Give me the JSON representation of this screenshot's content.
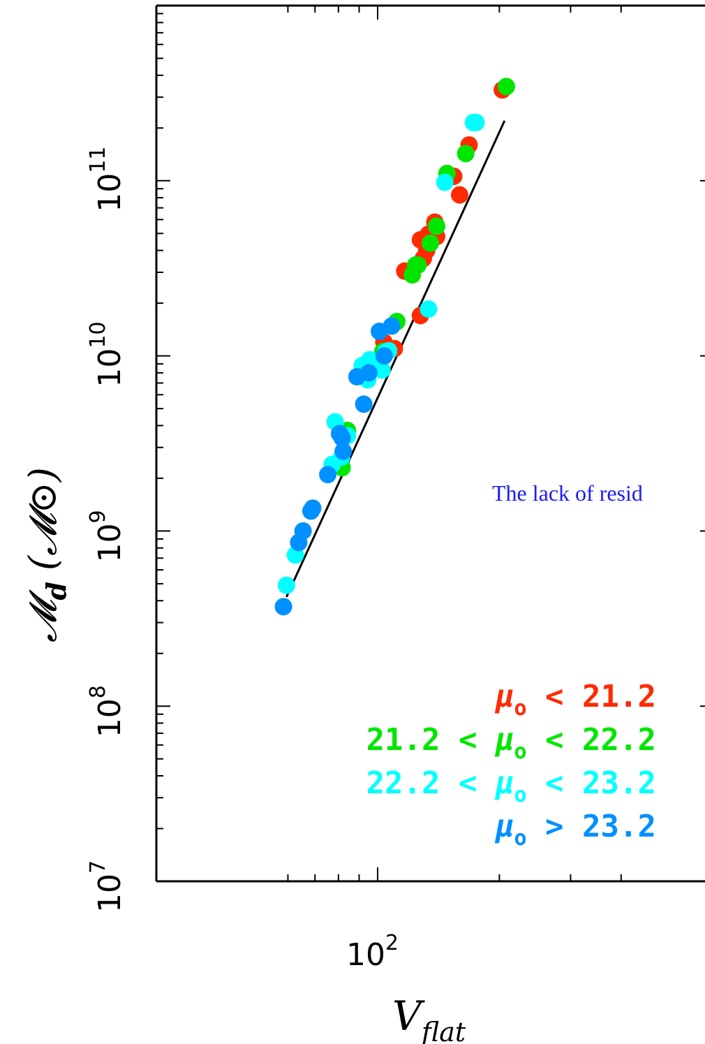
{
  "chart_data": {
    "type": "scatter",
    "xlabel": {
      "main": "V",
      "sub": "flat"
    },
    "ylabel": {
      "main": "𝓜",
      "sub": "d",
      "unit": "(𝓜⊙)"
    },
    "xscale": "log",
    "yscale": "log",
    "xlim": [
      55,
      450
    ],
    "ylim": [
      10000000.0,
      1000000000000.0
    ],
    "x_tick_labels": [
      {
        "base": "10",
        "exp": "2",
        "value": 100
      }
    ],
    "y_tick_labels": [
      {
        "base": "10",
        "exp": "7",
        "value": 10000000.0
      },
      {
        "base": "10",
        "exp": "8",
        "value": 100000000.0
      },
      {
        "base": "10",
        "exp": "9",
        "value": 1000000000.0
      },
      {
        "base": "10",
        "exp": "10",
        "value": 10000000000.0
      },
      {
        "base": "10",
        "exp": "11",
        "value": 100000000000.0
      }
    ],
    "fit_line": {
      "x": [
        59.5,
        206
      ],
      "y": [
        420000000.0,
        220000000000.0
      ]
    },
    "annotation": "The lack of resid",
    "legend_placement": "bottom-right",
    "series": [
      {
        "color": "#ff2a00",
        "legend": {
          "parts": [
            "μ",
            "o",
            " < 21.2"
          ]
        },
        "points": [
          {
            "x": 203.4,
            "y": 330000000000.0
          },
          {
            "x": 168.3,
            "y": 160000000000.0
          },
          {
            "x": 154.2,
            "y": 106000000000.0
          },
          {
            "x": 159.5,
            "y": 83000000000.0
          },
          {
            "x": 138.5,
            "y": 58000000000.0
          },
          {
            "x": 133.6,
            "y": 49500000000.0
          },
          {
            "x": 127.6,
            "y": 46000000000.0
          },
          {
            "x": 139.9,
            "y": 48000000000.0
          },
          {
            "x": 132.2,
            "y": 40000000000.0
          },
          {
            "x": 129.7,
            "y": 36000000000.0
          },
          {
            "x": 116.7,
            "y": 30500000000.0
          },
          {
            "x": 127.6,
            "y": 17000000000.0
          },
          {
            "x": 110.0,
            "y": 11000000000.0
          },
          {
            "x": 103.6,
            "y": 12000000000.0
          }
        ]
      },
      {
        "color": "#00e600",
        "legend": {
          "parts": [
            "21.2 < ",
            "μ",
            "o",
            " < 22.2"
          ]
        },
        "points": [
          {
            "x": 208.1,
            "y": 345000000000.0
          },
          {
            "x": 165.1,
            "y": 143000000000.0
          },
          {
            "x": 148.4,
            "y": 110000000000.0
          },
          {
            "x": 139.9,
            "y": 55000000000.0
          },
          {
            "x": 135.0,
            "y": 44000000000.0
          },
          {
            "x": 125.8,
            "y": 33000000000.0
          },
          {
            "x": 124.2,
            "y": 33000000000.0
          },
          {
            "x": 121.8,
            "y": 29000000000.0
          },
          {
            "x": 111.6,
            "y": 15700000000.0
          },
          {
            "x": 103.0,
            "y": 10600000000.0
          },
          {
            "x": 84.2,
            "y": 3750000000.0
          },
          {
            "x": 81.7,
            "y": 2300000000.0
          }
        ]
      },
      {
        "color": "#00ffff",
        "legend": {
          "parts": [
            "22.2 < ",
            "μ",
            "o",
            " < 23.2"
          ]
        },
        "points": [
          {
            "x": 175.1,
            "y": 215000000000.0
          },
          {
            "x": 172.5,
            "y": 215000000000.0
          },
          {
            "x": 146.6,
            "y": 98000000000.0
          },
          {
            "x": 133.6,
            "y": 18500000000.0
          },
          {
            "x": 106.5,
            "y": 10700000000.0
          },
          {
            "x": 104.7,
            "y": 10500000000.0
          },
          {
            "x": 102.5,
            "y": 8300000000.0
          },
          {
            "x": 95.6,
            "y": 9500000000.0
          },
          {
            "x": 94.5,
            "y": 7300000000.0
          },
          {
            "x": 91.6,
            "y": 8800000000.0
          },
          {
            "x": 78.5,
            "y": 4200000000.0
          },
          {
            "x": 84.2,
            "y": 3500000000.0
          },
          {
            "x": 81.5,
            "y": 2650000000.0
          },
          {
            "x": 77.2,
            "y": 2400000000.0
          },
          {
            "x": 62.6,
            "y": 730000000.0
          },
          {
            "x": 59.5,
            "y": 490000000.0
          }
        ]
      },
      {
        "color": "#0090ff",
        "legend": {
          "parts": [
            "μ",
            "o",
            " > 23.2"
          ]
        },
        "points": [
          {
            "x": 108.3,
            "y": 14800000000.0
          },
          {
            "x": 101.0,
            "y": 13800000000.0
          },
          {
            "x": 103.8,
            "y": 10000000000.0
          },
          {
            "x": 95.1,
            "y": 8000000000.0
          },
          {
            "x": 88.9,
            "y": 7600000000.0
          },
          {
            "x": 92.4,
            "y": 5300000000.0
          },
          {
            "x": 80.5,
            "y": 3600000000.0
          },
          {
            "x": 81.7,
            "y": 3400000000.0
          },
          {
            "x": 82.2,
            "y": 2850000000.0
          },
          {
            "x": 75.3,
            "y": 2100000000.0
          },
          {
            "x": 69.1,
            "y": 1350000000.0
          },
          {
            "x": 68.4,
            "y": 1300000000.0
          },
          {
            "x": 65.4,
            "y": 1000000000.0
          },
          {
            "x": 63.8,
            "y": 860000000.0
          },
          {
            "x": 58.5,
            "y": 370000000.0
          }
        ]
      }
    ]
  }
}
